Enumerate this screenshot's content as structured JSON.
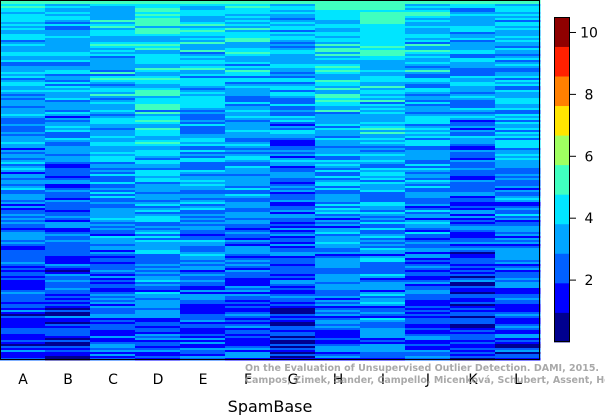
{
  "chart_data": {
    "type": "heatmap",
    "title": "",
    "xlabel": "SpamBase",
    "ylabel": "",
    "categories": [
      "A",
      "B",
      "C",
      "D",
      "E",
      "F",
      "G",
      "H",
      "I",
      "J",
      "K",
      "L"
    ],
    "column_means": [
      2.6,
      2.4,
      3.0,
      3.3,
      3.0,
      2.8,
      2.5,
      3.1,
      3.3,
      2.9,
      2.3,
      2.8
    ],
    "value_range": [
      0,
      10.5
    ],
    "colorbar": {
      "ticks": [
        2,
        4,
        6,
        8,
        10
      ],
      "colors": [
        "#00008F",
        "#0000FF",
        "#0060FF",
        "#00A5FF",
        "#00E5FF",
        "#40FFBF",
        "#9FFF60",
        "#FFE500",
        "#FF8000",
        "#FF2000",
        "#8F0000"
      ]
    },
    "watermark": [
      "On the Evaluation of Unsupervised Outlier Detection. DAMI, 2015.",
      "Campos, Zimek, Sander, Campello, Micenková, Schubert, Assent, Houle"
    ]
  }
}
